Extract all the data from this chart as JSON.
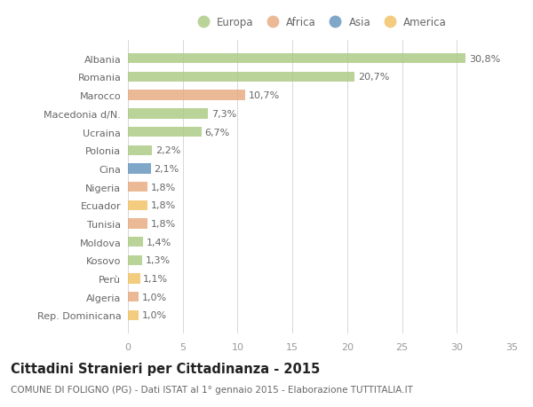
{
  "title": "Cittadini Stranieri per Cittadinanza - 2015",
  "subtitle": "COMUNE DI FOLIGNO (PG) - Dati ISTAT al 1° gennaio 2015 - Elaborazione TUTTITALIA.IT",
  "categories": [
    "Albania",
    "Romania",
    "Marocco",
    "Macedonia d/N.",
    "Ucraina",
    "Polonia",
    "Cina",
    "Nigeria",
    "Ecuador",
    "Tunisia",
    "Moldova",
    "Kosovo",
    "Perù",
    "Algeria",
    "Rep. Dominicana"
  ],
  "values": [
    30.8,
    20.7,
    10.7,
    7.3,
    6.7,
    2.2,
    2.1,
    1.8,
    1.8,
    1.8,
    1.4,
    1.3,
    1.1,
    1.0,
    1.0
  ],
  "continents": [
    "Europa",
    "Europa",
    "Africa",
    "Europa",
    "Europa",
    "Europa",
    "Asia",
    "Africa",
    "America",
    "Africa",
    "Europa",
    "Europa",
    "America",
    "Africa",
    "America"
  ],
  "colors": {
    "Europa": "#a8c880",
    "Africa": "#e8a87c",
    "Asia": "#6090bb",
    "America": "#f0c060"
  },
  "xlim": [
    0,
    35
  ],
  "xticks": [
    0,
    5,
    10,
    15,
    20,
    25,
    30,
    35
  ],
  "background_color": "#ffffff",
  "grid_color": "#d8d8d8",
  "bar_height": 0.55,
  "label_fontsize": 8.0,
  "title_fontsize": 10.5,
  "subtitle_fontsize": 7.5,
  "tick_fontsize": 8.0,
  "legend_fontsize": 8.5,
  "bar_alpha": 0.8
}
